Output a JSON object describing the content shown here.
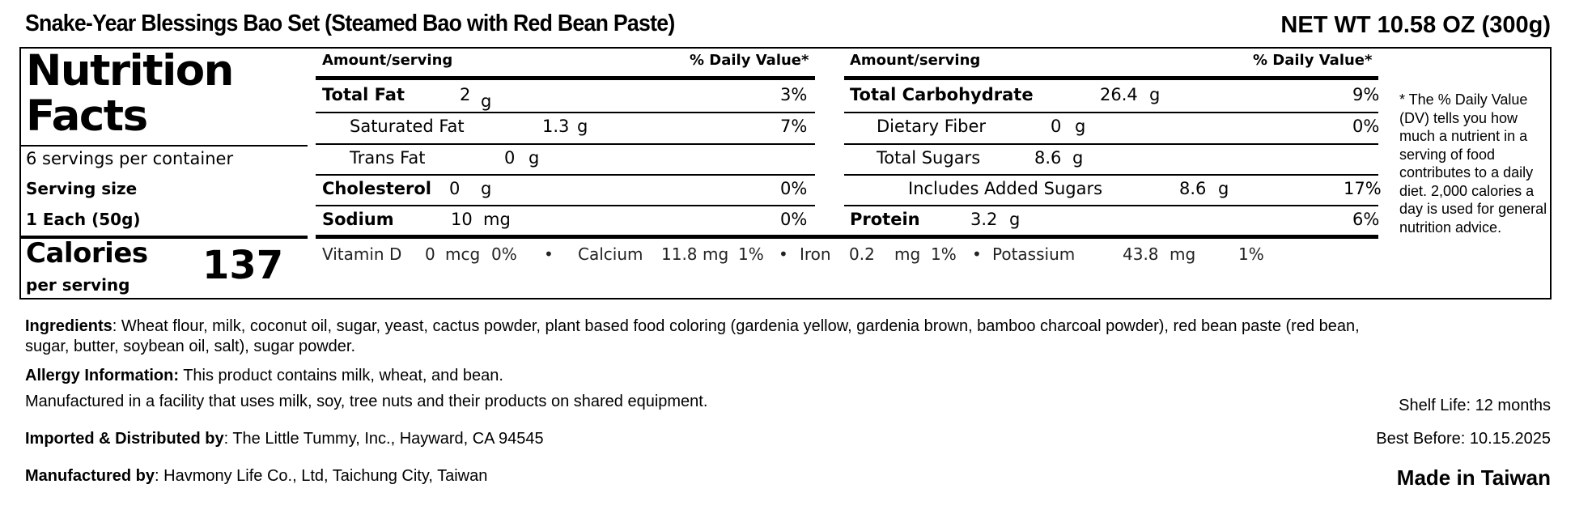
{
  "product_title": "Snake-Year Blessings Bao Set (Steamed Bao with Red Bean Paste)",
  "net_weight": "NET WT 10.58 OZ (300g)",
  "nutrition": {
    "heading_line1": "Nutrition",
    "heading_line2": "Facts",
    "servings_per_container": "6 servings per container",
    "serving_size_label": "Serving size",
    "serving_size_value": "1 Each (50g)",
    "calories_label": "Calories",
    "per_serving": "per serving",
    "calories_value": "137",
    "header_amount": "Amount/serving",
    "header_dv": "% Daily Value*",
    "left": {
      "total_fat": {
        "label": "Total Fat",
        "amount": "2",
        "unit": "g",
        "dv": "3%"
      },
      "saturated_fat": {
        "label": "Saturated Fat",
        "amount": "1.3",
        "unit": "g",
        "dv": "7%"
      },
      "trans_fat": {
        "label": "Trans Fat",
        "amount": "0",
        "unit": "g"
      },
      "cholesterol": {
        "label": "Cholesterol",
        "amount": "0",
        "unit": "g",
        "dv": "0%"
      },
      "sodium": {
        "label": "Sodium",
        "amount": "10",
        "unit": "mg",
        "dv": "0%"
      }
    },
    "right": {
      "total_carbohydrate": {
        "label": "Total Carbohydrate",
        "amount": "26.4",
        "unit": "g",
        "dv": "9%"
      },
      "dietary_fiber": {
        "label": "Dietary Fiber",
        "amount": "0",
        "unit": "g",
        "dv": "0%"
      },
      "total_sugars": {
        "label": "Total Sugars",
        "amount": "8.6",
        "unit": "g"
      },
      "added_sugars": {
        "label": "Includes Added Sugars",
        "amount": "8.6",
        "unit": "g",
        "dv": "17%"
      },
      "protein": {
        "label": "Protein",
        "amount": "3.2",
        "unit": "g",
        "dv": "6%"
      }
    },
    "vitamins": {
      "vitamin_d": {
        "label": "Vitamin D",
        "amount": "0",
        "unit": "mcg",
        "dv": "0%"
      },
      "calcium": {
        "label": "Calcium",
        "amount": "11.8",
        "unit": "mg",
        "dv": "1%"
      },
      "iron": {
        "label": "Iron",
        "amount": "0.2",
        "unit": "mg",
        "dv": "1%"
      },
      "potassium": {
        "label": "Potassium",
        "amount": "43.8",
        "unit": "mg",
        "dv": "1%"
      },
      "separator": "•"
    },
    "footnote": "* The % Daily Value (DV) tells you how much a nutrient in a serving of food contributes to a daily diet. 2,000 calories a day is used for general nutrition advice."
  },
  "info": {
    "ingredients_label": "Ingredients",
    "ingredients_line1": ": Wheat flour, milk, coconut oil, sugar, yeast, cactus powder, plant based food coloring (gardenia yellow, gardenia brown, bamboo charcoal powder), red bean paste (red bean,",
    "ingredients_line2": "sugar, butter, soybean oil, salt), sugar powder.",
    "allergy_label": "Allergy Information:",
    "allergy_text": " This product contains milk, wheat, and bean.",
    "facility_text": "Manufactured in a facility that uses milk, soy, tree nuts and their products on shared equipment.",
    "imported_label": "Imported & Distributed by",
    "imported_text": ": The Little Tummy, Inc., Hayward, CA 94545",
    "manufactured_label": "Manufactured by",
    "manufactured_text": ": Havmony Life Co., Ltd, Taichung City, Taiwan",
    "shelf_life": "Shelf Life: 12 months",
    "best_before": "Best Before: 10.15.2025",
    "made_in": "Made in Taiwan"
  }
}
